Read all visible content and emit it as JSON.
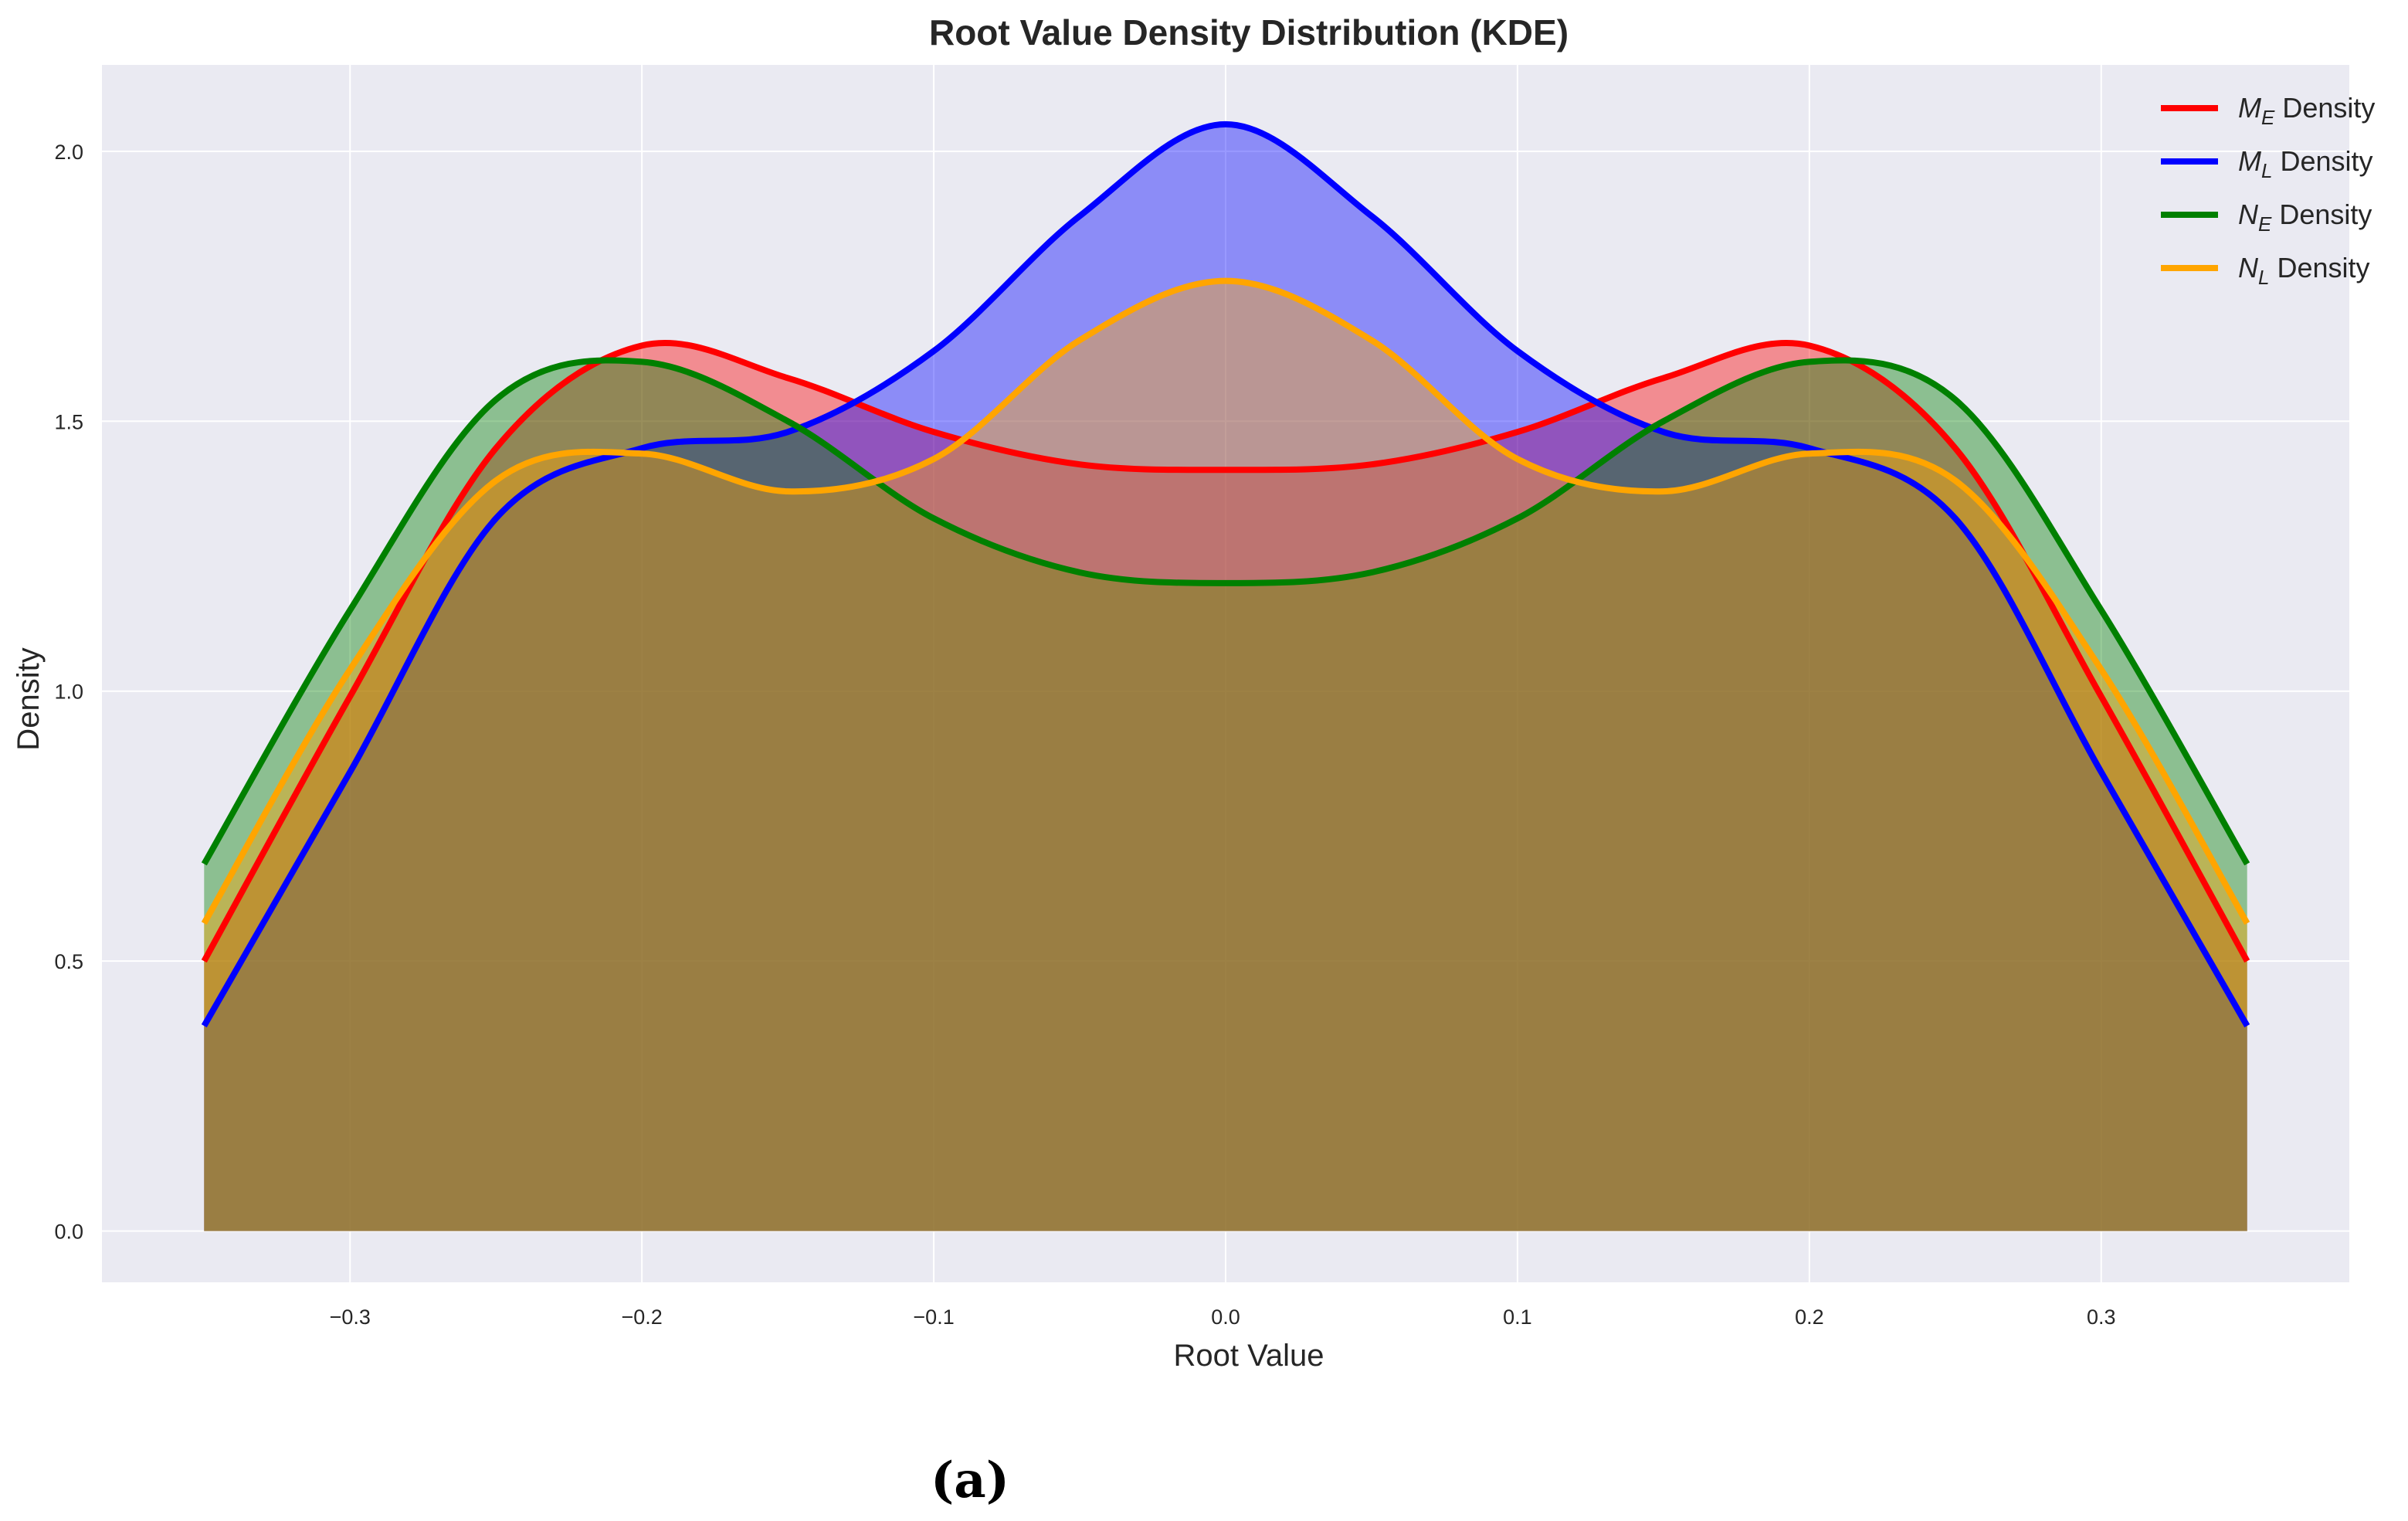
{
  "chart_data": {
    "type": "area",
    "title": "Root Value Density Distribution (KDE)",
    "xlabel": "Root Value",
    "ylabel": "Density",
    "xlim": [
      -0.385,
      0.385
    ],
    "ylim": [
      -0.095,
      2.16
    ],
    "xticks": [
      -0.3,
      -0.2,
      -0.1,
      0.0,
      0.1,
      0.2,
      0.3
    ],
    "xtick_labels": [
      "−0.3",
      "−0.2",
      "−0.1",
      "0.0",
      "0.1",
      "0.2",
      "0.3"
    ],
    "yticks": [
      0.0,
      0.5,
      1.0,
      1.5,
      2.0
    ],
    "ytick_labels": [
      "0.0",
      "0.5",
      "1.0",
      "1.5",
      "2.0"
    ],
    "grid": true,
    "legend_position": "top-right",
    "x": [
      -0.35,
      -0.3,
      -0.25,
      -0.2,
      -0.15,
      -0.1,
      -0.05,
      0.0,
      0.05,
      0.1,
      0.15,
      0.2,
      0.25,
      0.3,
      0.35
    ],
    "series": [
      {
        "name_main": "M",
        "name_sub": "E",
        "name_suffix": " Density",
        "color": "#ff0000",
        "values": [
          0.5,
          0.99,
          1.45,
          1.64,
          1.58,
          1.48,
          1.42,
          1.41,
          1.42,
          1.48,
          1.58,
          1.64,
          1.45,
          0.99,
          0.5
        ]
      },
      {
        "name_main": "M",
        "name_sub": "L",
        "name_suffix": " Density",
        "color": "#0000ff",
        "values": [
          0.38,
          0.85,
          1.32,
          1.45,
          1.48,
          1.63,
          1.88,
          2.05,
          1.88,
          1.63,
          1.48,
          1.45,
          1.32,
          0.85,
          0.38
        ]
      },
      {
        "name_main": "N",
        "name_sub": "E",
        "name_suffix": " Density",
        "color": "#008000",
        "values": [
          0.68,
          1.15,
          1.54,
          1.61,
          1.5,
          1.32,
          1.22,
          1.2,
          1.22,
          1.32,
          1.5,
          1.61,
          1.54,
          1.15,
          0.68
        ]
      },
      {
        "name_main": "N",
        "name_sub": "L",
        "name_suffix": " Density",
        "color": "#ffa500",
        "values": [
          0.57,
          1.04,
          1.39,
          1.44,
          1.37,
          1.43,
          1.65,
          1.76,
          1.65,
          1.43,
          1.37,
          1.44,
          1.39,
          1.04,
          0.57
        ]
      }
    ],
    "panel_label": "(a)",
    "plot_background": "#eaeaf2",
    "grid_color": "#ffffff"
  }
}
